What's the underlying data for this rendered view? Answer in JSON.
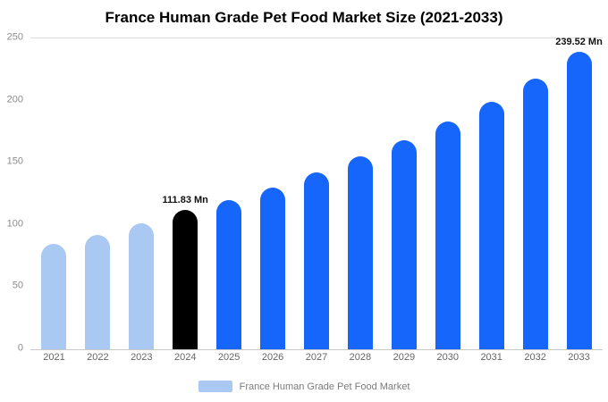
{
  "title": "France Human Grade Pet Food Market Size (2021-2033)",
  "legend": {
    "label": "France Human Grade Pet Food Market",
    "swatch_color": "#a9c9f2"
  },
  "colors": {
    "light": "#a9c9f2",
    "primary": "#1666fb",
    "highlight": "#000000"
  },
  "chart_data": {
    "type": "bar",
    "title": "France Human Grade Pet Food Market Size (2021-2033)",
    "categories": [
      "2021",
      "2022",
      "2023",
      "2024",
      "2025",
      "2026",
      "2027",
      "2028",
      "2029",
      "2030",
      "2031",
      "2032",
      "2033"
    ],
    "values": [
      85,
      92,
      101,
      111.83,
      120,
      130,
      142,
      155,
      168,
      183,
      199,
      218,
      239.52
    ],
    "bar_roles": [
      "light",
      "light",
      "light",
      "highlight",
      "primary",
      "primary",
      "primary",
      "primary",
      "primary",
      "primary",
      "primary",
      "primary",
      "primary"
    ],
    "annotations": [
      {
        "index": 3,
        "text": "111.83 Mn"
      },
      {
        "index": 12,
        "text": "239.52 Mn"
      }
    ],
    "xlabel": "",
    "ylabel": "",
    "ylim": [
      0,
      250
    ],
    "yticks": [
      0,
      50,
      100,
      150,
      200,
      250
    ],
    "grid": false,
    "legend_position": "bottom"
  }
}
